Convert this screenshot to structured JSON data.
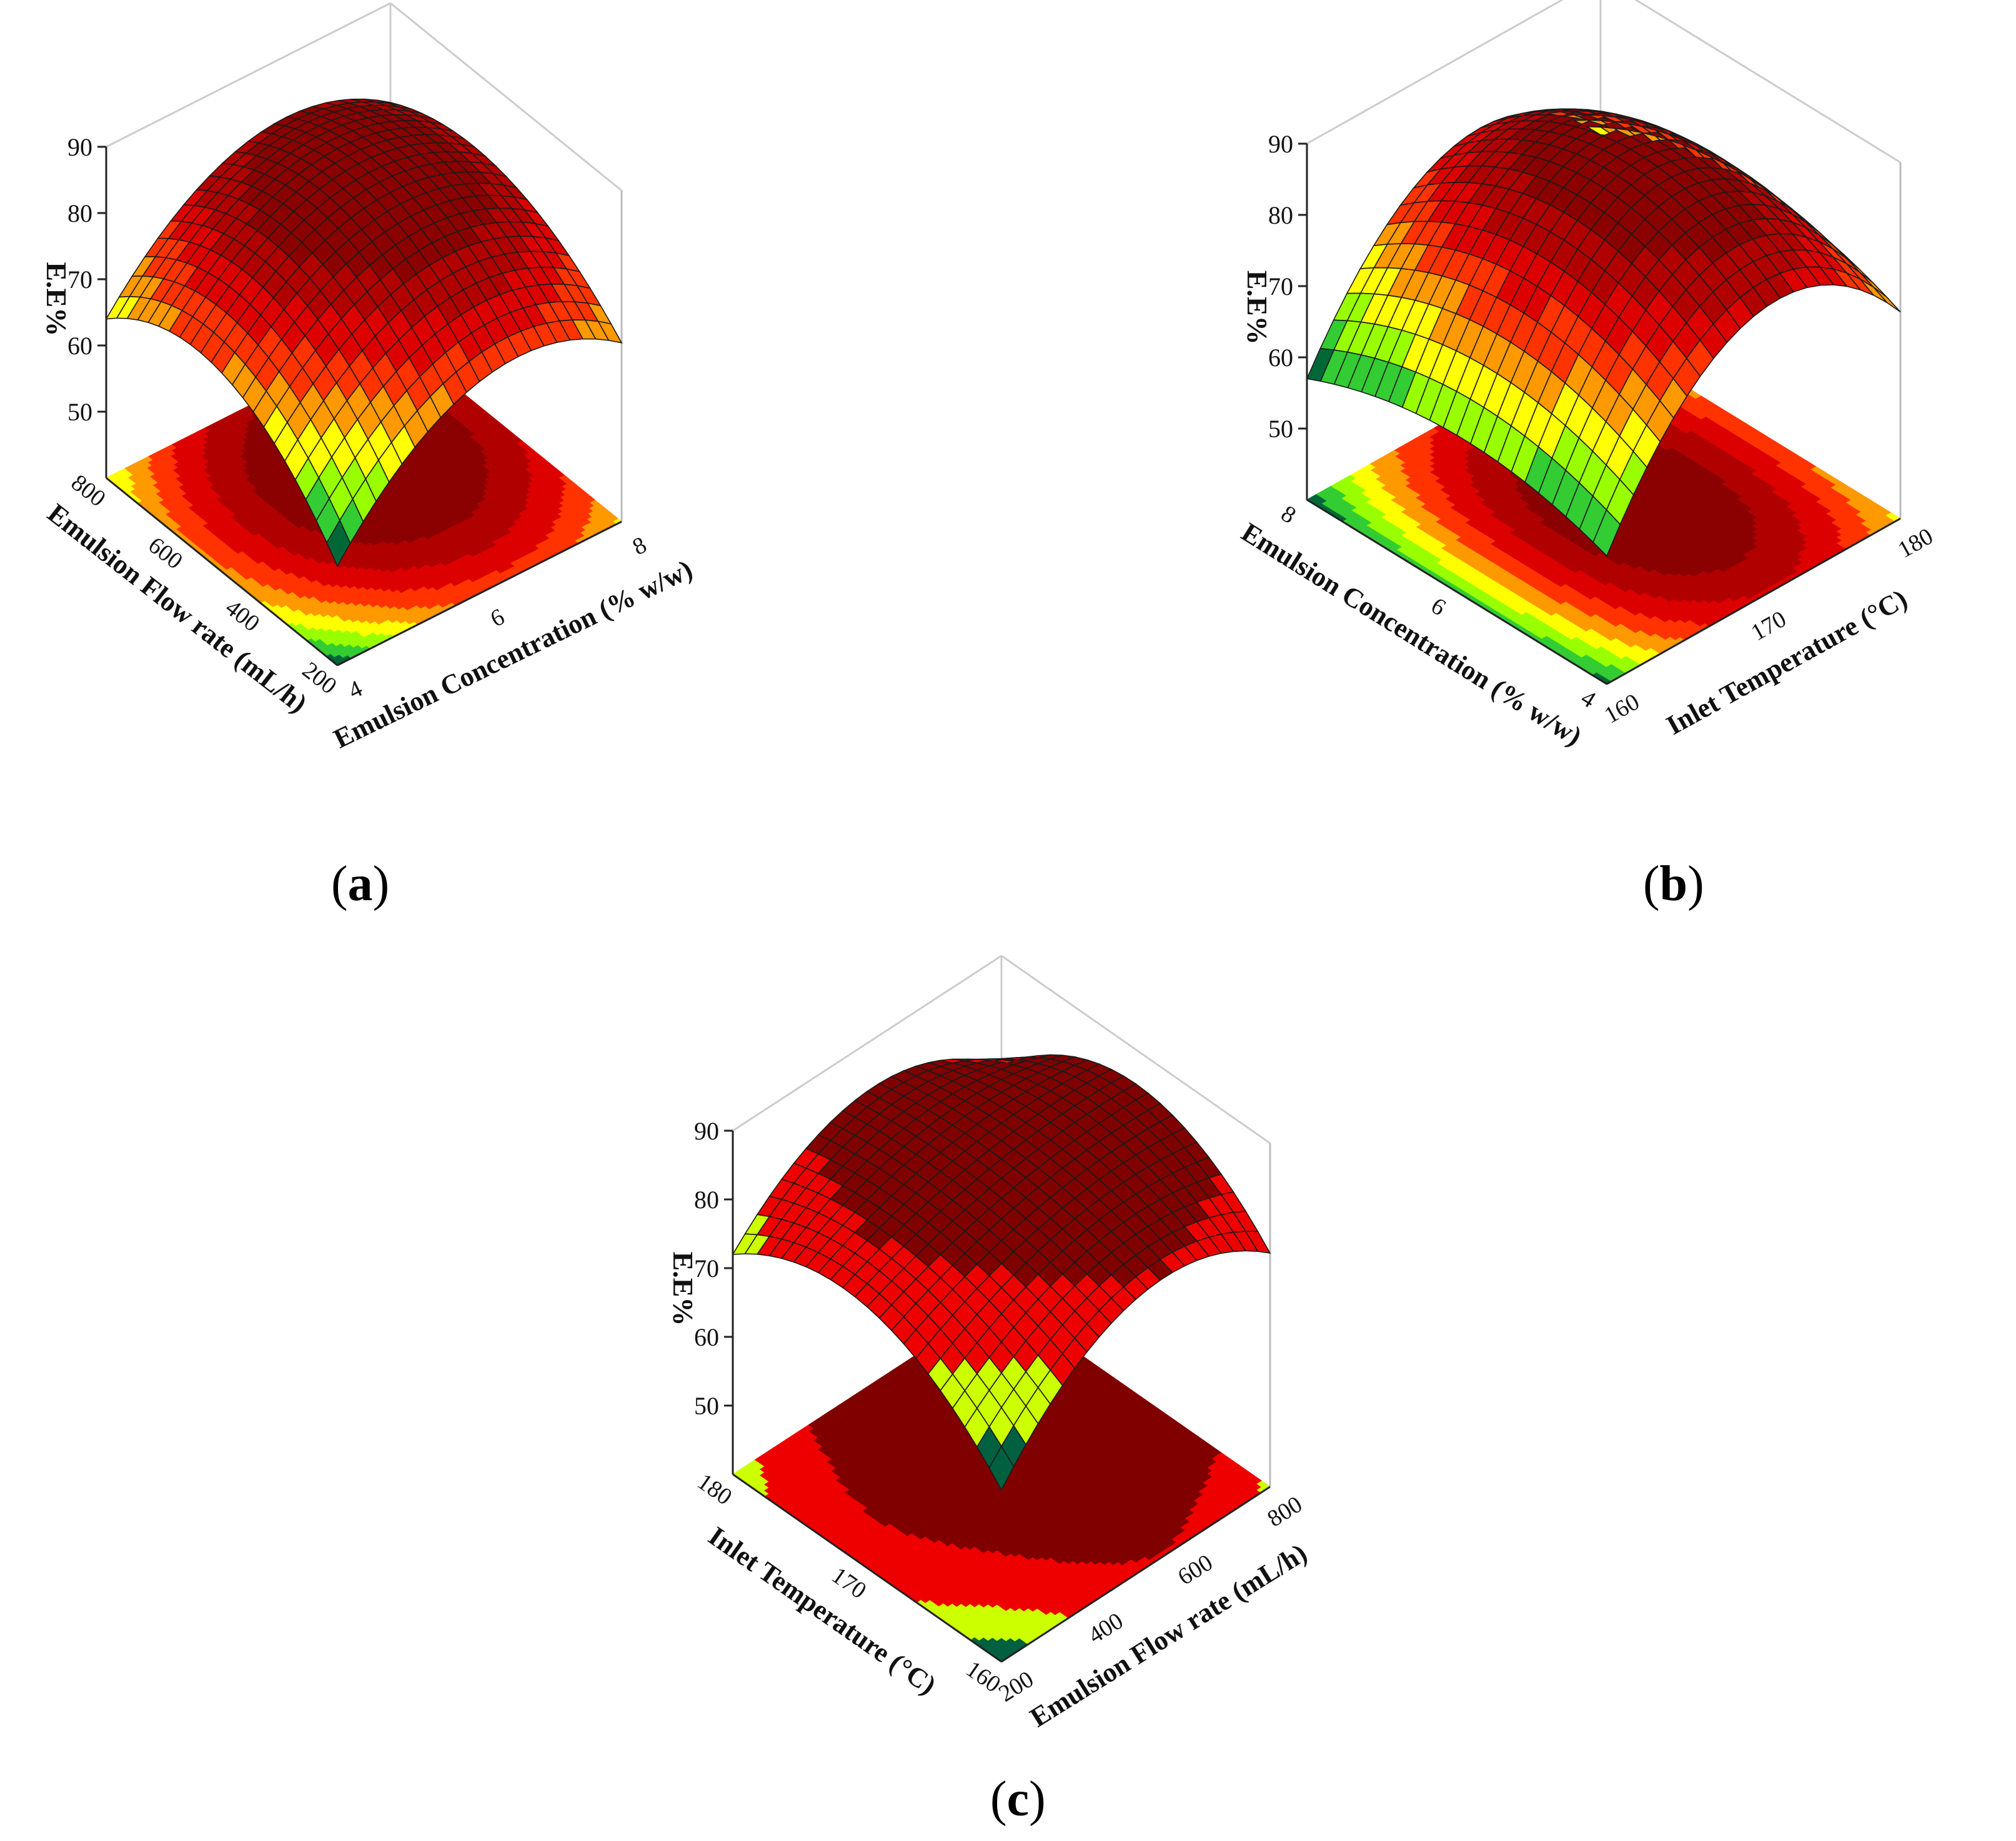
{
  "chart_data": [
    {
      "type": "surface3d",
      "panel": "a",
      "caption_letter": "a",
      "zlabel": "E.E%",
      "xlabel": "Emulsion Concentration (% w/w)",
      "ylabel": "Emulsion Flow rate (mL/h)",
      "xlim": [
        4,
        8
      ],
      "ylim": [
        200,
        800
      ],
      "zlim": [
        40,
        90
      ],
      "x_ticks": [
        "4",
        "6",
        "8"
      ],
      "y_ticks": [
        "200",
        "400",
        "600",
        "800"
      ],
      "z_ticks": [
        "50",
        "60",
        "70",
        "80",
        "90"
      ],
      "surface_grid": {
        "x": [
          4,
          6,
          8
        ],
        "y": [
          200,
          500,
          800
        ],
        "z": [
          [
            55,
            72,
            67
          ],
          [
            70,
            84,
            78
          ],
          [
            64,
            80,
            75
          ]
        ]
      },
      "colorscale": [
        "#006837",
        "#33cc33",
        "#99ff00",
        "#ffff00",
        "#ff9900",
        "#ff3300",
        "#dd0000",
        "#b00000",
        "#8b0000"
      ]
    },
    {
      "type": "surface3d",
      "panel": "b",
      "caption_letter": "b",
      "zlabel": "E.E%",
      "xlabel": "Inlet Temperature (°C)",
      "ylabel": "Emulsion Concentration (% w/w)",
      "xlim": [
        160,
        180
      ],
      "ylim": [
        4,
        8
      ],
      "zlim": [
        40,
        90
      ],
      "x_ticks": [
        "160",
        "170",
        "180"
      ],
      "y_ticks": [
        "4",
        "6",
        "8"
      ],
      "z_ticks": [
        "50",
        "60",
        "70",
        "80",
        "90"
      ],
      "surface_grid": {
        "x": [
          160,
          170,
          180
        ],
        "y": [
          4,
          6,
          8
        ],
        "z": [
          [
            58,
            80,
            69
          ],
          [
            62,
            88,
            74
          ],
          [
            57,
            78,
            68
          ]
        ]
      },
      "colorscale": [
        "#006837",
        "#33cc33",
        "#99ff00",
        "#ffff00",
        "#ff9900",
        "#ff3300",
        "#dd0000",
        "#b00000",
        "#8b0000"
      ]
    },
    {
      "type": "surface3d",
      "panel": "c",
      "caption_letter": "c",
      "zlabel": "E.E%",
      "xlabel": "Emulsion Flow rate (mL/h)",
      "ylabel": "Inlet Temperature (°C)",
      "xlim": [
        200,
        800
      ],
      "ylim": [
        160,
        180
      ],
      "zlim": [
        40,
        90
      ],
      "x_ticks": [
        "200",
        "400",
        "600",
        "800"
      ],
      "y_ticks": [
        "160",
        "170",
        "180"
      ],
      "z_ticks": [
        "50",
        "60",
        "70",
        "80",
        "90"
      ],
      "surface_grid": {
        "x": [
          200,
          500,
          800
        ],
        "y": [
          160,
          170,
          180
        ],
        "z": [
          [
            65,
            80,
            74
          ],
          [
            78,
            84,
            85
          ],
          [
            72,
            83,
            74
          ]
        ]
      },
      "colorscale": [
        "#006040",
        "#ccff00",
        "#ee0000",
        "#800000"
      ]
    }
  ]
}
